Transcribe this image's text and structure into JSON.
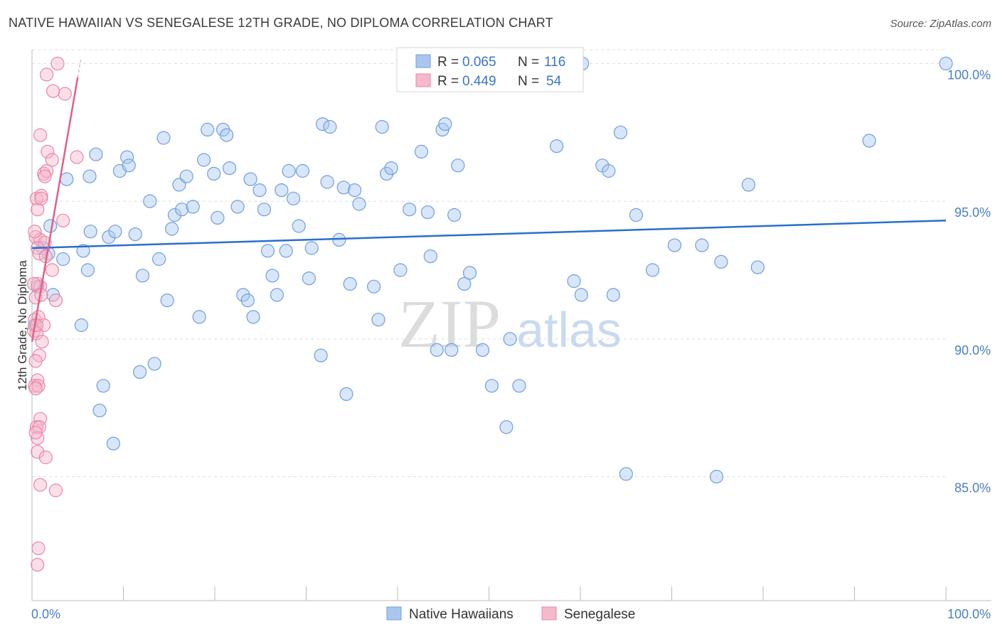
{
  "header": {
    "title": "NATIVE HAWAIIAN VS SENEGALESE 12TH GRADE, NO DIPLOMA CORRELATION CHART",
    "source": "Source: ZipAtlas.com"
  },
  "watermark": {
    "zip": "ZIP",
    "atlas": "atlas"
  },
  "legend_top": {
    "rows": [
      {
        "r_label": "R =",
        "r_value": "0.065",
        "n_label": "N =",
        "n_value": "116"
      },
      {
        "r_label": "R =",
        "r_value": "0.449",
        "n_label": "N =",
        "n_value": "54"
      }
    ]
  },
  "colors": {
    "blue_fill": "#a9c7ee",
    "blue_stroke": "#6f9fdc",
    "blue_line": "#2a6fcc",
    "pink_fill": "#f6b9cc",
    "pink_stroke": "#e886a6",
    "pink_line": "#e0608c",
    "grid": "#dddddd",
    "axis_text": "#4a7fc0"
  },
  "chart_data": {
    "type": "scatter",
    "title": "NATIVE HAWAIIAN VS SENEGALESE 12TH GRADE, NO DIPLOMA CORRELATION CHART",
    "xlabel": "",
    "ylabel": "12th Grade, No Diploma",
    "xlim": [
      0,
      100
    ],
    "ylim": [
      80.5,
      100.5
    ],
    "x_tick_labels": [
      "0.0%",
      "100.0%"
    ],
    "y_ticks": [
      85,
      90,
      95,
      100
    ],
    "y_tick_labels": [
      "85.0%",
      "90.0%",
      "95.0%",
      "100.0%"
    ],
    "grid": true,
    "legend_position": "bottom",
    "series": [
      {
        "name": "Native Hawaiians",
        "color": "#6f9fdc",
        "trend": {
          "x": [
            0,
            100
          ],
          "y": [
            93.3,
            94.3
          ]
        },
        "points": [
          [
            1.8,
            93.1
          ],
          [
            2.3,
            91.6
          ],
          [
            3.4,
            92.9
          ],
          [
            3.8,
            95.8
          ],
          [
            5.4,
            90.5
          ],
          [
            5.6,
            93.2
          ],
          [
            6.1,
            92.5
          ],
          [
            6.3,
            95.9
          ],
          [
            6.4,
            93.9
          ],
          [
            7.0,
            96.7
          ],
          [
            7.4,
            87.4
          ],
          [
            7.8,
            88.3
          ],
          [
            8.4,
            93.7
          ],
          [
            8.9,
            86.2
          ],
          [
            9.1,
            93.9
          ],
          [
            9.6,
            96.1
          ],
          [
            10.4,
            96.6
          ],
          [
            10.6,
            96.3
          ],
          [
            11.3,
            93.8
          ],
          [
            11.8,
            88.8
          ],
          [
            12.1,
            92.3
          ],
          [
            12.9,
            95.0
          ],
          [
            13.4,
            89.1
          ],
          [
            13.9,
            92.9
          ],
          [
            14.4,
            97.3
          ],
          [
            14.8,
            91.4
          ],
          [
            15.3,
            94.0
          ],
          [
            15.6,
            94.5
          ],
          [
            16.1,
            95.6
          ],
          [
            16.4,
            94.7
          ],
          [
            16.9,
            95.9
          ],
          [
            17.6,
            94.8
          ],
          [
            18.3,
            90.8
          ],
          [
            18.8,
            96.5
          ],
          [
            19.2,
            97.6
          ],
          [
            19.9,
            96.0
          ],
          [
            20.3,
            94.4
          ],
          [
            20.9,
            97.6
          ],
          [
            21.3,
            97.4
          ],
          [
            21.6,
            96.2
          ],
          [
            22.5,
            94.8
          ],
          [
            23.1,
            91.6
          ],
          [
            23.6,
            91.4
          ],
          [
            23.9,
            95.8
          ],
          [
            24.2,
            90.8
          ],
          [
            24.9,
            95.4
          ],
          [
            25.4,
            94.7
          ],
          [
            25.8,
            93.2
          ],
          [
            26.3,
            92.3
          ],
          [
            26.8,
            91.6
          ],
          [
            27.3,
            95.4
          ],
          [
            27.8,
            93.2
          ],
          [
            28.1,
            96.1
          ],
          [
            28.6,
            95.1
          ],
          [
            29.2,
            94.1
          ],
          [
            29.6,
            96.1
          ],
          [
            30.3,
            92.2
          ],
          [
            30.6,
            93.3
          ],
          [
            31.6,
            89.4
          ],
          [
            31.8,
            97.8
          ],
          [
            32.3,
            95.7
          ],
          [
            32.6,
            97.7
          ],
          [
            33.6,
            93.6
          ],
          [
            34.1,
            95.5
          ],
          [
            34.4,
            88.0
          ],
          [
            34.8,
            92.0
          ],
          [
            35.3,
            95.4
          ],
          [
            35.8,
            94.9
          ],
          [
            37.4,
            91.9
          ],
          [
            37.9,
            90.7
          ],
          [
            38.3,
            97.7
          ],
          [
            38.8,
            96.0
          ],
          [
            39.3,
            96.2
          ],
          [
            40.3,
            92.5
          ],
          [
            41.3,
            94.7
          ],
          [
            42.6,
            96.8
          ],
          [
            43.3,
            94.6
          ],
          [
            43.6,
            93.0
          ],
          [
            44.3,
            89.6
          ],
          [
            44.9,
            97.6
          ],
          [
            45.2,
            97.8
          ],
          [
            45.9,
            89.6
          ],
          [
            46.2,
            94.5
          ],
          [
            46.6,
            96.3
          ],
          [
            47.3,
            92.0
          ],
          [
            47.9,
            92.4
          ],
          [
            49.3,
            89.6
          ],
          [
            50.3,
            88.3
          ],
          [
            51.9,
            86.8
          ],
          [
            52.3,
            90.0
          ],
          [
            53.3,
            88.3
          ],
          [
            57.4,
            97.0
          ],
          [
            59.3,
            92.1
          ],
          [
            60.1,
            91.6
          ],
          [
            62.4,
            96.3
          ],
          [
            63.1,
            96.1
          ],
          [
            63.6,
            91.6
          ],
          [
            64.4,
            97.5
          ],
          [
            65.0,
            85.1
          ],
          [
            66.1,
            94.5
          ],
          [
            67.9,
            92.5
          ],
          [
            70.3,
            93.4
          ],
          [
            73.3,
            93.4
          ],
          [
            74.9,
            85.0
          ],
          [
            75.4,
            92.8
          ],
          [
            78.4,
            95.6
          ],
          [
            79.4,
            92.6
          ],
          [
            91.6,
            97.2
          ],
          [
            100.0,
            100.0
          ],
          [
            1.2,
            93.3
          ],
          [
            2.0,
            94.1
          ],
          [
            41.3,
            100.0
          ],
          [
            59.6,
            100.0
          ],
          [
            60.2,
            100.0
          ],
          [
            0.3,
            90.5
          ],
          [
            0.6,
            91.9
          ]
        ]
      },
      {
        "name": "Senegalese",
        "color": "#e886a6",
        "trend": {
          "x": [
            0.0,
            5.0
          ],
          "y": [
            89.9,
            99.5
          ]
        },
        "points": [
          [
            2.8,
            100.0
          ],
          [
            3.6,
            98.9
          ],
          [
            1.6,
            99.6
          ],
          [
            2.3,
            99.0
          ],
          [
            0.9,
            97.4
          ],
          [
            1.7,
            96.8
          ],
          [
            4.9,
            96.6
          ],
          [
            2.2,
            96.5
          ],
          [
            1.3,
            96.0
          ],
          [
            1.6,
            96.1
          ],
          [
            1.4,
            95.9
          ],
          [
            0.5,
            95.1
          ],
          [
            1.0,
            95.2
          ],
          [
            0.6,
            94.7
          ],
          [
            3.4,
            94.3
          ],
          [
            0.4,
            93.7
          ],
          [
            0.9,
            93.6
          ],
          [
            1.4,
            93.5
          ],
          [
            0.6,
            93.3
          ],
          [
            0.8,
            93.1
          ],
          [
            1.5,
            93.0
          ],
          [
            2.2,
            92.5
          ],
          [
            0.6,
            92.0
          ],
          [
            0.9,
            91.9
          ],
          [
            0.4,
            91.5
          ],
          [
            1.0,
            91.6
          ],
          [
            2.6,
            91.4
          ],
          [
            0.3,
            90.7
          ],
          [
            0.7,
            90.8
          ],
          [
            1.3,
            90.5
          ],
          [
            0.2,
            90.3
          ],
          [
            0.5,
            90.2
          ],
          [
            0.8,
            89.4
          ],
          [
            0.4,
            89.2
          ],
          [
            0.6,
            88.5
          ],
          [
            0.3,
            88.3
          ],
          [
            0.7,
            88.3
          ],
          [
            0.9,
            87.1
          ],
          [
            0.5,
            86.8
          ],
          [
            0.8,
            86.8
          ],
          [
            0.6,
            86.4
          ],
          [
            0.4,
            86.6
          ],
          [
            0.6,
            85.9
          ],
          [
            1.5,
            85.7
          ],
          [
            0.9,
            84.7
          ],
          [
            2.6,
            84.5
          ],
          [
            0.7,
            82.4
          ],
          [
            0.6,
            81.8
          ],
          [
            1.0,
            95.1
          ],
          [
            0.2,
            92.0
          ],
          [
            0.3,
            93.9
          ],
          [
            0.5,
            90.5
          ],
          [
            1.1,
            89.9
          ],
          [
            0.4,
            88.2
          ]
        ]
      }
    ]
  }
}
